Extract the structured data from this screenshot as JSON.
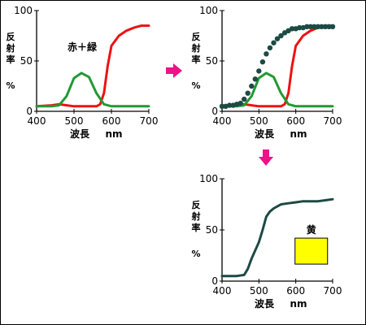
{
  "colors": {
    "red": "#ee1111",
    "green": "#229933",
    "dark": "#1c4a44",
    "arrow": "#ee1188",
    "yellow": "#ffff00"
  },
  "chart_data": [
    {
      "type": "line",
      "ylabel": [
        "反",
        "射",
        "率"
      ],
      "yunit": "%",
      "xlabel": [
        "波長",
        "nm"
      ],
      "xlim": [
        400,
        700
      ],
      "ylim": [
        0,
        100
      ],
      "xticks": [
        "400",
        "500",
        "600",
        "700"
      ],
      "yticks": [
        "0",
        "50",
        "100"
      ],
      "annotation": "赤＋緑",
      "series": [
        {
          "color": "red",
          "style": "line",
          "x": [
            400,
            440,
            460,
            480,
            500,
            520,
            540,
            560,
            570,
            580,
            590,
            600,
            620,
            640,
            660,
            680,
            700
          ],
          "y": [
            5,
            6,
            7,
            6,
            5,
            5,
            5,
            5,
            7,
            18,
            45,
            65,
            75,
            80,
            83,
            85,
            85
          ]
        },
        {
          "color": "green",
          "style": "line",
          "x": [
            400,
            440,
            460,
            480,
            500,
            520,
            540,
            560,
            580,
            600,
            650,
            700
          ],
          "y": [
            5,
            5,
            6,
            15,
            33,
            38,
            34,
            18,
            7,
            5,
            5,
            5
          ]
        }
      ]
    },
    {
      "type": "line",
      "ylabel": [
        "反",
        "射",
        "率"
      ],
      "yunit": "%",
      "xlabel": [
        "波長",
        "nm"
      ],
      "xlim": [
        400,
        700
      ],
      "ylim": [
        0,
        100
      ],
      "xticks": [
        "400",
        "500",
        "600",
        "700"
      ],
      "yticks": [
        "0",
        "50",
        "100"
      ],
      "series": [
        {
          "color": "red",
          "style": "line",
          "x": [
            400,
            440,
            460,
            480,
            500,
            520,
            540,
            560,
            570,
            580,
            590,
            600,
            620,
            640,
            660,
            680,
            700
          ],
          "y": [
            5,
            6,
            7,
            6,
            5,
            5,
            5,
            5,
            7,
            18,
            45,
            65,
            75,
            80,
            83,
            85,
            85
          ]
        },
        {
          "color": "green",
          "style": "line",
          "x": [
            400,
            440,
            460,
            480,
            500,
            520,
            540,
            560,
            580,
            600,
            650,
            700
          ],
          "y": [
            5,
            5,
            6,
            15,
            33,
            38,
            34,
            18,
            7,
            5,
            5,
            5
          ]
        },
        {
          "color": "dark",
          "style": "dots",
          "x": [
            400,
            410,
            420,
            430,
            440,
            450,
            460,
            470,
            480,
            490,
            500,
            510,
            520,
            530,
            540,
            550,
            560,
            570,
            580,
            590,
            600,
            610,
            620,
            630,
            640,
            650,
            660,
            670,
            680,
            690,
            700
          ],
          "y": [
            5,
            5,
            6,
            6,
            7,
            8,
            12,
            18,
            25,
            32,
            40,
            49,
            57,
            63,
            68,
            72,
            75,
            78,
            80,
            82,
            82,
            83,
            83,
            84,
            84,
            84,
            84,
            84,
            84,
            84,
            84
          ]
        }
      ]
    },
    {
      "type": "line",
      "ylabel": [
        "反",
        "射",
        "率"
      ],
      "yunit": "%",
      "xlabel": [
        "波長",
        "nm"
      ],
      "xlim": [
        400,
        700
      ],
      "ylim": [
        0,
        100
      ],
      "xticks": [
        "400",
        "500",
        "600",
        "700"
      ],
      "yticks": [
        "0",
        "50",
        "100"
      ],
      "swatch_label": "黄",
      "series": [
        {
          "color": "dark",
          "style": "line",
          "x": [
            400,
            440,
            460,
            470,
            480,
            490,
            500,
            510,
            520,
            530,
            540,
            560,
            580,
            600,
            620,
            640,
            660,
            680,
            700
          ],
          "y": [
            5,
            5,
            6,
            12,
            22,
            30,
            38,
            50,
            63,
            68,
            71,
            75,
            76,
            77,
            78,
            78,
            78,
            79,
            80
          ]
        }
      ]
    }
  ]
}
